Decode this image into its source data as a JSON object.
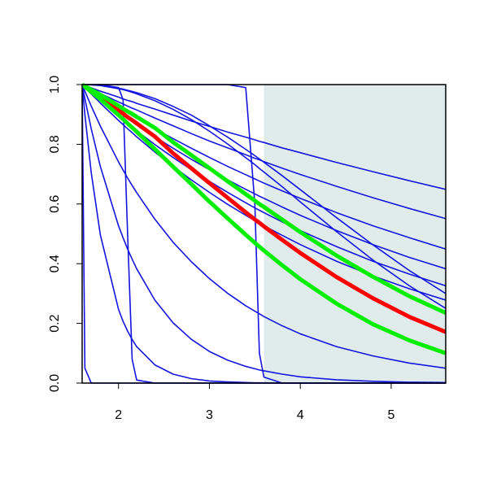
{
  "chart_data": {
    "type": "line",
    "x": [
      1.6,
      1.63,
      1.7,
      1.8,
      2.0,
      2.05,
      2.1,
      2.15,
      2.2,
      2.4,
      2.6,
      2.8,
      3.0,
      3.2,
      3.4,
      3.5,
      3.55,
      3.6,
      3.8,
      4.0,
      4.4,
      4.8,
      5.2,
      5.6
    ],
    "xlim": [
      1.6,
      5.6
    ],
    "xticks": [
      2,
      3,
      4,
      5
    ],
    "ylim": [
      0,
      1
    ],
    "yticks": [
      {
        "value": 0,
        "label": "0.0"
      },
      0.2,
      0.4,
      0.6,
      0.8,
      {
        "value": 1,
        "label": "1.0"
      }
    ],
    "shaded_xrange": [
      3.6,
      5.6
    ],
    "shade_color": "#e0ecec",
    "series": [
      {
        "color": "#1414e0",
        "values": [
          1,
          0.997,
          0.989,
          0.978,
          0.958,
          0.952,
          0.947,
          0.943,
          0.937,
          0.918,
          0.898,
          0.878,
          0.86,
          0.841,
          0.824,
          0.815,
          0.81,
          0.806,
          0.788,
          0.772,
          0.739,
          0.708,
          0.678,
          0.649
        ]
      },
      {
        "color": "#1414e0",
        "values": [
          1,
          0.996,
          0.985,
          0.97,
          0.942,
          0.935,
          0.928,
          0.921,
          0.915,
          0.888,
          0.862,
          0.836,
          0.811,
          0.788,
          0.765,
          0.753,
          0.748,
          0.742,
          0.72,
          0.699,
          0.659,
          0.621,
          0.585,
          0.551
        ]
      },
      {
        "color": "#1414e0",
        "values": [
          1,
          0.994,
          0.98,
          0.961,
          0.923,
          0.914,
          0.905,
          0.896,
          0.887,
          0.852,
          0.819,
          0.787,
          0.756,
          0.726,
          0.698,
          0.684,
          0.677,
          0.67,
          0.644,
          0.619,
          0.571,
          0.527,
          0.487,
          0.449
        ]
      },
      {
        "color": "#1414e0",
        "values": [
          1,
          0.993,
          0.976,
          0.953,
          0.908,
          0.898,
          0.887,
          0.876,
          0.866,
          0.825,
          0.787,
          0.75,
          0.715,
          0.681,
          0.649,
          0.634,
          0.626,
          0.619,
          0.59,
          0.562,
          0.511,
          0.464,
          0.421,
          0.383
        ]
      },
      {
        "color": "#1414e0",
        "values": [
          1,
          0.992,
          0.972,
          0.946,
          0.894,
          0.882,
          0.869,
          0.857,
          0.845,
          0.799,
          0.756,
          0.715,
          0.676,
          0.639,
          0.604,
          0.587,
          0.579,
          0.571,
          0.54,
          0.511,
          0.457,
          0.408,
          0.365,
          0.326
        ]
      },
      {
        "color": "#1414e0",
        "values": [
          1,
          0.99,
          0.969,
          0.938,
          0.88,
          0.866,
          0.852,
          0.839,
          0.825,
          0.774,
          0.726,
          0.681,
          0.639,
          0.599,
          0.562,
          0.544,
          0.536,
          0.527,
          0.495,
          0.464,
          0.408,
          0.359,
          0.316,
          0.278
        ]
      },
      {
        "color": "#1414e0",
        "values": [
          1,
          1,
          0.999,
          0.997,
          0.988,
          0.985,
          0.981,
          0.977,
          0.973,
          0.953,
          0.927,
          0.898,
          0.862,
          0.824,
          0.783,
          0.762,
          0.751,
          0.74,
          0.695,
          0.648,
          0.554,
          0.463,
          0.377,
          0.3
        ]
      },
      {
        "color": "#1414e0",
        "values": [
          1,
          1,
          0.999,
          0.997,
          0.986,
          0.983,
          0.979,
          0.974,
          0.969,
          0.946,
          0.917,
          0.883,
          0.844,
          0.801,
          0.755,
          0.732,
          0.719,
          0.707,
          0.658,
          0.607,
          0.507,
          0.412,
          0.326,
          0.25
        ]
      },
      {
        "color": "#1414e0",
        "values": [
          1,
          0.978,
          0.928,
          0.861,
          0.741,
          0.714,
          0.687,
          0.662,
          0.638,
          0.549,
          0.472,
          0.407,
          0.35,
          0.301,
          0.259,
          0.241,
          0.232,
          0.223,
          0.192,
          0.165,
          0.122,
          0.091,
          0.067,
          0.05
        ]
      },
      {
        "color": "#1414e0",
        "values": [
          1,
          0.953,
          0.852,
          0.726,
          0.527,
          0.487,
          0.449,
          0.415,
          0.383,
          0.278,
          0.202,
          0.147,
          0.106,
          0.077,
          0.056,
          0.048,
          0.044,
          0.041,
          0.03,
          0.021,
          0.011,
          0.006,
          0.003,
          0.002
        ]
      },
      {
        "color": "#1414e0",
        "values": [
          1,
          0.9,
          0.705,
          0.497,
          0.247,
          0.207,
          0.174,
          0.146,
          0.122,
          0.061,
          0.03,
          0.015,
          0.007,
          0.004,
          0.002,
          0.001,
          0.001,
          0.001,
          0,
          0,
          0,
          0,
          0,
          0
        ]
      },
      {
        "color": "#1414e0",
        "values": [
          1,
          0.05,
          0,
          0,
          0,
          0,
          0,
          0,
          0,
          0,
          0,
          0,
          0,
          0,
          0,
          0,
          0,
          0,
          0,
          0,
          0,
          0,
          0,
          0
        ]
      },
      {
        "color": "#1414e0",
        "values": [
          1,
          1,
          1,
          1,
          0.99,
          0.95,
          0.5,
          0.08,
          0.01,
          0,
          0,
          0,
          0,
          0,
          0,
          0,
          0,
          0,
          0,
          0,
          0,
          0,
          0,
          0
        ]
      },
      {
        "color": "#1414e0",
        "values": [
          1,
          1,
          1,
          1,
          1,
          1,
          1,
          1,
          1,
          1,
          1,
          1,
          1,
          1,
          0.99,
          0.6,
          0.1,
          0.02,
          0,
          0,
          0,
          0,
          0,
          0
        ]
      },
      {
        "color": "#ff0000",
        "values": [
          1,
          0.994,
          0.979,
          0.958,
          0.914,
          0.903,
          0.891,
          0.881,
          0.87,
          0.826,
          0.77,
          0.72,
          0.67,
          0.621,
          0.572,
          0.548,
          0.537,
          0.525,
          0.48,
          0.436,
          0.355,
          0.284,
          0.222,
          0.171
        ]
      },
      {
        "color": "#00ee00",
        "values": [
          1,
          0.995,
          0.983,
          0.966,
          0.929,
          0.919,
          0.91,
          0.902,
          0.892,
          0.855,
          0.807,
          0.764,
          0.72,
          0.676,
          0.633,
          0.611,
          0.6,
          0.59,
          0.548,
          0.506,
          0.427,
          0.356,
          0.291,
          0.235
        ]
      },
      {
        "color": "#00ee00",
        "values": [
          1,
          0.993,
          0.976,
          0.951,
          0.898,
          0.884,
          0.87,
          0.856,
          0.842,
          0.784,
          0.725,
          0.667,
          0.608,
          0.552,
          0.497,
          0.47,
          0.457,
          0.444,
          0.395,
          0.348,
          0.266,
          0.197,
          0.143,
          0.1
        ]
      }
    ]
  }
}
